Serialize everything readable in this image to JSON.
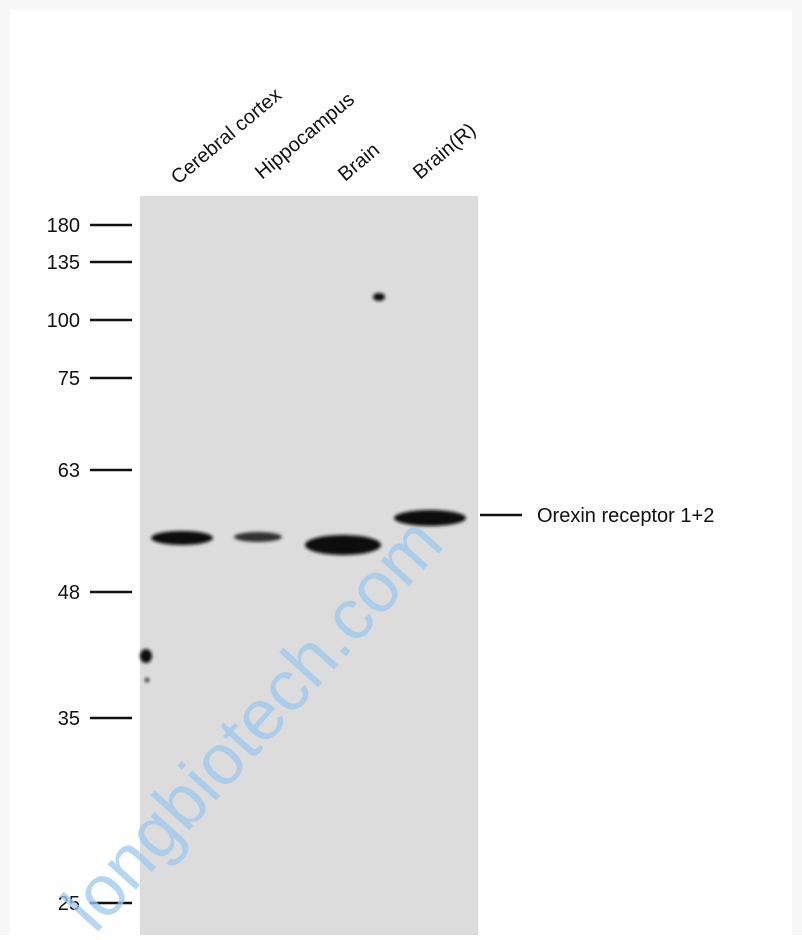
{
  "lanes": [
    "Cerebral cortex",
    "Hippocampus",
    "Brain",
    "Brain(R)"
  ],
  "markers": [
    "180",
    "135",
    "100",
    "75",
    "63",
    "48",
    "35",
    "25"
  ],
  "band_label": "Orexin receptor 1+2",
  "watermark": "longbiotech.com"
}
